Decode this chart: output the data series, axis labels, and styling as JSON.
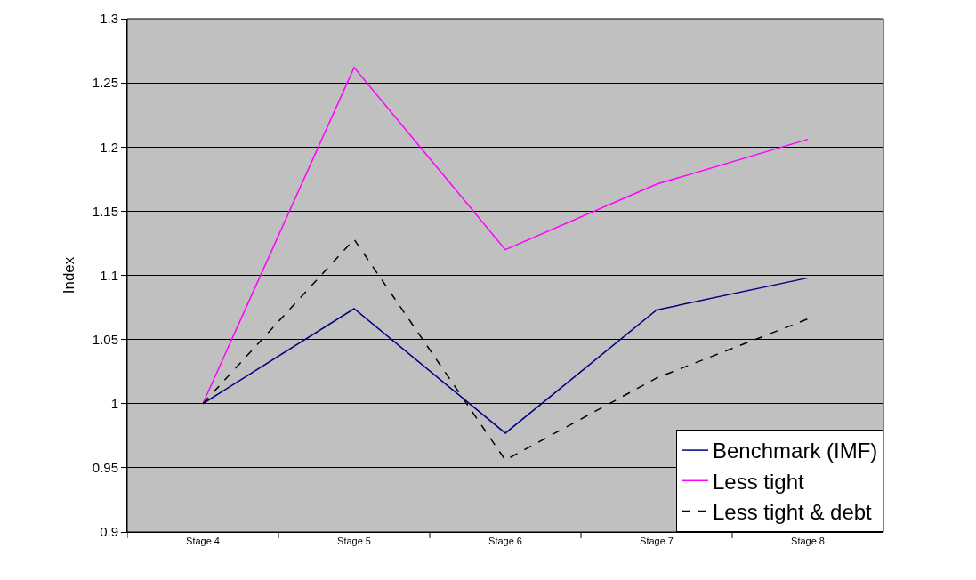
{
  "chart_data": {
    "type": "line",
    "ylabel": "Index",
    "categories": [
      "Stage 4",
      "Stage 5",
      "Stage 6",
      "Stage 7",
      "Stage 8"
    ],
    "series": [
      {
        "name": "Benchmark (IMF)",
        "color": "#000080",
        "values": [
          1.0,
          1.074,
          0.977,
          1.073,
          1.098
        ]
      },
      {
        "name": "Less tight",
        "color": "#ff00ff",
        "values": [
          1.0,
          1.262,
          1.12,
          1.171,
          1.206
        ]
      },
      {
        "name": "Less tight & debt",
        "color": "#000000",
        "line_style": "dashed",
        "values": [
          1.0,
          1.128,
          0.956,
          1.02,
          1.066
        ]
      }
    ],
    "ylim": [
      0.9,
      1.3
    ],
    "yticks": [
      0.9,
      0.95,
      1,
      1.05,
      1.1,
      1.15,
      1.2,
      1.25,
      1.3
    ],
    "grid": "y",
    "legend": "bottom right",
    "marker": "none"
  }
}
